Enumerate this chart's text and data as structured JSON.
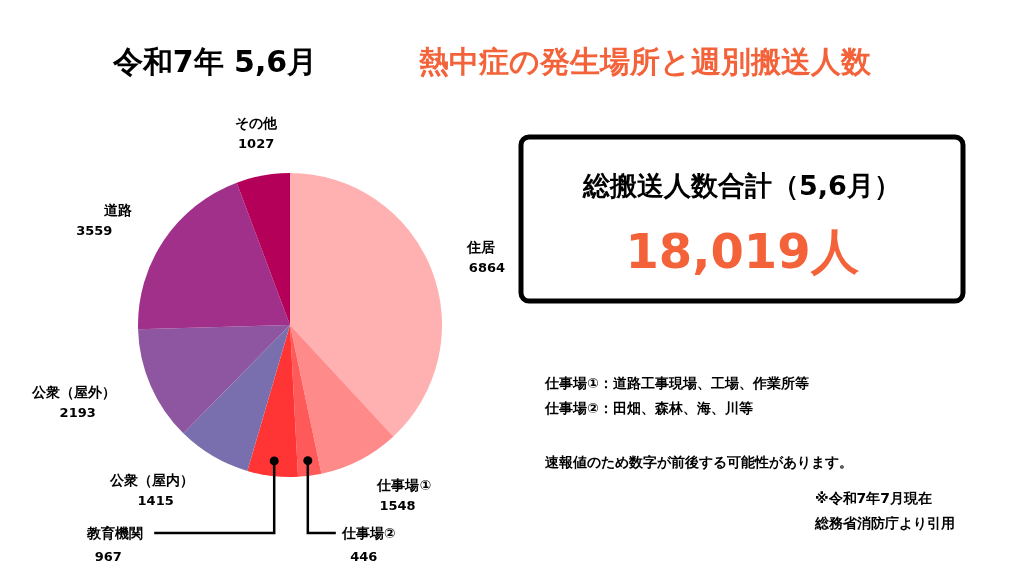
{
  "chart_data": [
    {
      "type": "pie",
      "title": "令和7年 5,6月",
      "subtitle": "熱中症の発生場所と週別搬送人数",
      "categories": [
        "住居",
        "仕事場①",
        "仕事場②",
        "教育機関",
        "公衆（屋内）",
        "公衆（屋外）",
        "道路",
        "その他"
      ],
      "values": [
        6864,
        1548,
        446,
        967,
        1415,
        2193,
        3559,
        1027
      ],
      "colors": [
        "#ffb0b0",
        "#ff8a8a",
        "#ff5a5a",
        "#ff3535",
        "#7a6fae",
        "#8e55a0",
        "#a0308a",
        "#b5005a"
      ],
      "data_labels": true,
      "annotations": [
        "仕事場①：道路工事現場、工場、作業所等",
        "仕事場②：田畑、森林、海、川等",
        "速報値のため数字が前後する可能性があります。",
        "※令和7年7月現在",
        "総務省消防庁より引用"
      ]
    },
    {
      "type": "other",
      "title": "総搬送人数合計（5,6月）",
      "annotations": [
        "18,019人"
      ]
    }
  ]
}
